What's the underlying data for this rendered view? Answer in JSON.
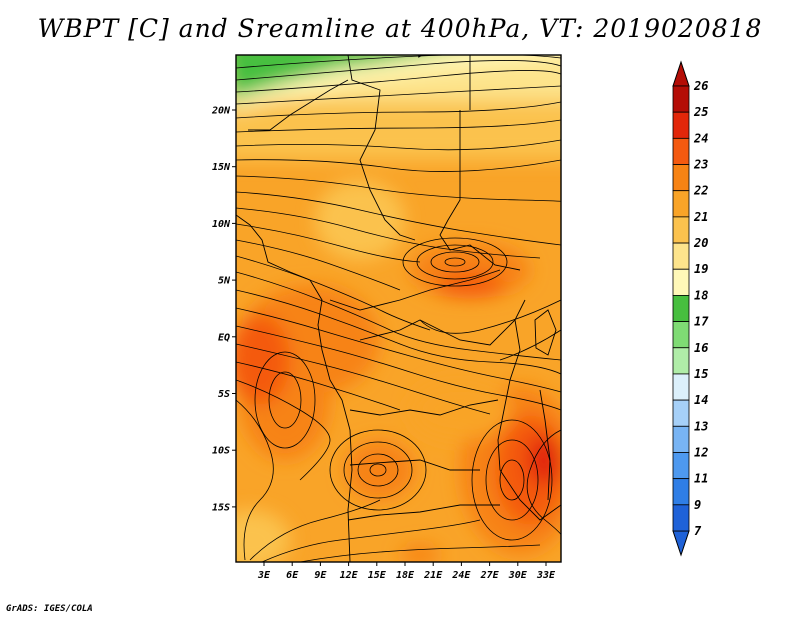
{
  "title": "WBPT [C] and Sreamline at 400hPa, VT: 2019020818",
  "credit": "GrADS: IGES/COLA",
  "map": {
    "lon_labels": [
      "3E",
      "6E",
      "9E",
      "12E",
      "15E",
      "18E",
      "21E",
      "24E",
      "27E",
      "30E",
      "33E"
    ],
    "lat_labels": [
      "20N",
      "15N",
      "10N",
      "5N",
      "EQ",
      "5S",
      "10S",
      "15S"
    ]
  },
  "legend": {
    "colors": [
      "#1f62d8",
      "#2f7ee6",
      "#4e99ef",
      "#78b4f4",
      "#a6d0f8",
      "#dcf0fb",
      "#b0eda8",
      "#7fdb74",
      "#47bf3f",
      "#fff8b8",
      "#fde48c",
      "#fbc24e",
      "#f9a428",
      "#f78314",
      "#f45a10",
      "#e2270a",
      "#b40d06"
    ],
    "labels": [
      "7",
      "9",
      "11",
      "12",
      "13",
      "14",
      "15",
      "16",
      "17",
      "18",
      "19",
      "20",
      "21",
      "22",
      "23",
      "24",
      "25",
      "26"
    ]
  }
}
